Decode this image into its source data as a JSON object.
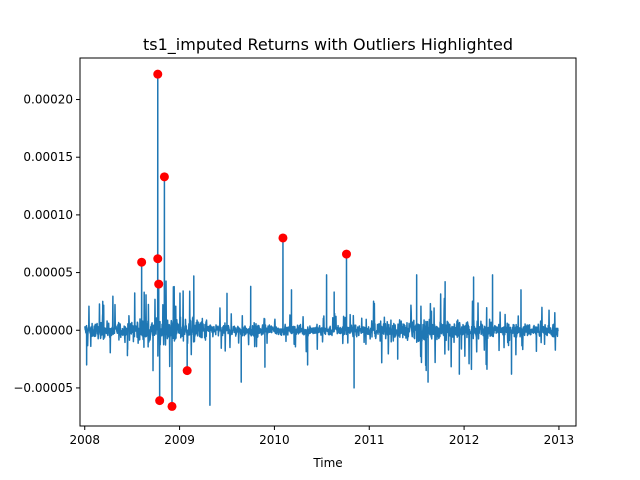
{
  "chart_data": {
    "type": "line",
    "title": "ts1_imputed Returns with Outliers Highlighted",
    "xlabel": "Time",
    "ylabel": "",
    "xlim": [
      2007.95,
      2013.18
    ],
    "ylim": [
      -8.3e-05,
      0.000236
    ],
    "x_ticks": [
      2008,
      2009,
      2010,
      2011,
      2012,
      2013
    ],
    "x_tick_labels": [
      "2008",
      "2009",
      "2010",
      "2011",
      "2012",
      "2013"
    ],
    "y_ticks": [
      -5e-05,
      0.0,
      5e-05,
      0.0001,
      0.00015,
      0.0002
    ],
    "y_tick_labels": [
      "−0.00005",
      "0.00000",
      "0.00005",
      "0.00010",
      "0.00015",
      "0.00020"
    ],
    "grid": false,
    "legend": "none",
    "line_color": "#1f77b4",
    "outlier_color": "#ff0000",
    "series": [
      {
        "kind": "line",
        "x_range": [
          2008.0,
          2012.99
        ],
        "baseline": 0.0,
        "noise_amplitude_by_year": [
          {
            "from": 2008.0,
            "to": 2008.5,
            "amp": 1.2e-05
          },
          {
            "from": 2008.5,
            "to": 2009.3,
            "amp": 1.8e-05
          },
          {
            "from": 2009.3,
            "to": 2010.0,
            "amp": 1e-05
          },
          {
            "from": 2010.0,
            "to": 2011.0,
            "amp": 8e-06
          },
          {
            "from": 2011.0,
            "to": 2011.5,
            "amp": 1.4e-05
          },
          {
            "from": 2011.5,
            "to": 2012.3,
            "amp": 1.6e-05
          },
          {
            "from": 2012.3,
            "to": 2013.0,
            "amp": 1e-05
          }
        ],
        "spikes": [
          {
            "x": 2008.02,
            "y": -3e-05
          },
          {
            "x": 2008.19,
            "y": 2.5e-05
          },
          {
            "x": 2008.45,
            "y": -2.2e-05
          },
          {
            "x": 2008.6,
            "y": 5.9e-05
          },
          {
            "x": 2008.72,
            "y": -3.5e-05
          },
          {
            "x": 2008.77,
            "y": 0.000222
          },
          {
            "x": 2008.77,
            "y": 6.2e-05
          },
          {
            "x": 2008.78,
            "y": 4e-05
          },
          {
            "x": 2008.79,
            "y": -6.1e-05
          },
          {
            "x": 2008.84,
            "y": 0.000133
          },
          {
            "x": 2008.92,
            "y": -6.6e-05
          },
          {
            "x": 2009.08,
            "y": -3.5e-05
          },
          {
            "x": 2009.15,
            "y": 4.7e-05
          },
          {
            "x": 2009.32,
            "y": -6.5e-05
          },
          {
            "x": 2009.5,
            "y": 3.2e-05
          },
          {
            "x": 2009.65,
            "y": -4.5e-05
          },
          {
            "x": 2009.75,
            "y": 3.8e-05
          },
          {
            "x": 2009.9,
            "y": -3.2e-05
          },
          {
            "x": 2010.09,
            "y": 8e-05
          },
          {
            "x": 2010.18,
            "y": 3.5e-05
          },
          {
            "x": 2010.35,
            "y": -3e-05
          },
          {
            "x": 2010.55,
            "y": 4.8e-05
          },
          {
            "x": 2010.63,
            "y": 3.3e-05
          },
          {
            "x": 2010.76,
            "y": 6.6e-05
          },
          {
            "x": 2010.84,
            "y": -5e-05
          },
          {
            "x": 2011.3,
            "y": -2.5e-05
          },
          {
            "x": 2011.5,
            "y": 4.8e-05
          },
          {
            "x": 2011.62,
            "y": -4.5e-05
          },
          {
            "x": 2011.8,
            "y": 4.2e-05
          },
          {
            "x": 2011.95,
            "y": -3.8e-05
          },
          {
            "x": 2012.1,
            "y": 4.6e-05
          },
          {
            "x": 2012.3,
            "y": 4.8e-05
          },
          {
            "x": 2012.5,
            "y": -3.8e-05
          },
          {
            "x": 2012.6,
            "y": 3.5e-05
          }
        ]
      },
      {
        "kind": "scatter",
        "points": [
          {
            "x": 2008.6,
            "y": 5.9e-05
          },
          {
            "x": 2008.77,
            "y": 0.000222
          },
          {
            "x": 2008.77,
            "y": 6.2e-05
          },
          {
            "x": 2008.78,
            "y": 4e-05
          },
          {
            "x": 2008.79,
            "y": -6.1e-05
          },
          {
            "x": 2008.84,
            "y": 0.000133
          },
          {
            "x": 2008.92,
            "y": -6.6e-05
          },
          {
            "x": 2009.08,
            "y": -3.5e-05
          },
          {
            "x": 2010.09,
            "y": 8e-05
          },
          {
            "x": 2010.76,
            "y": 6.6e-05
          }
        ]
      }
    ]
  }
}
